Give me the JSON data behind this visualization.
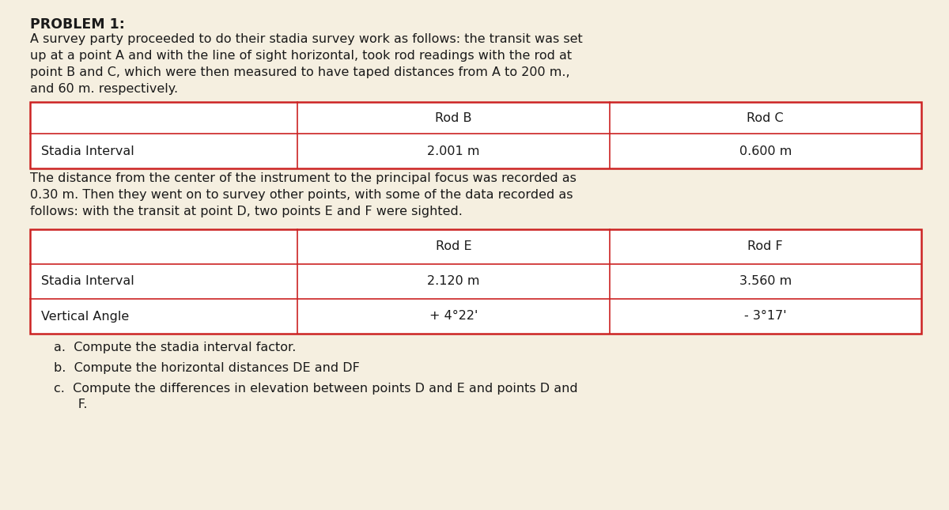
{
  "bg_color": "#f5efe0",
  "title": "PROBLEM 1:",
  "intro_text": "A survey party proceeded to do their stadia survey work as follows: the transit was set\nup at a point A and with the line of sight horizontal, took rod readings with the rod at\npoint B and C, which were then measured to have taped distances from A to 200 m.,\nand 60 m. respectively.",
  "table1": {
    "col_labels": [
      "",
      "Rod B",
      "Rod C"
    ],
    "rows": [
      [
        "Stadia Interval",
        "2.001 m",
        "0.600 m"
      ]
    ]
  },
  "middle_text": "The distance from the center of the instrument to the principal focus was recorded as\n0.30 m. Then they went on to survey other points, with some of the data recorded as\nfollows: with the transit at point D, two points E and F were sighted.",
  "table2": {
    "col_labels": [
      "",
      "Rod E",
      "Rod F"
    ],
    "rows": [
      [
        "Stadia Interval",
        "2.120 m",
        "3.560 m"
      ],
      [
        "Vertical Angle",
        "+ 4°22'",
        "- 3°17'"
      ]
    ]
  },
  "questions": [
    "a.  Compute the stadia interval factor.",
    "b.  Compute the horizontal distances DE and DF",
    "c.  Compute the differences in elevation between points D and E and points D and\n      F."
  ],
  "table_border_color": "#cc2222",
  "text_color": "#1a1a1a",
  "font_family": "DejaVu Sans",
  "title_fontsize": 12.5,
  "body_fontsize": 11.5,
  "table_fontsize": 11.5,
  "question_fontsize": 11.5
}
